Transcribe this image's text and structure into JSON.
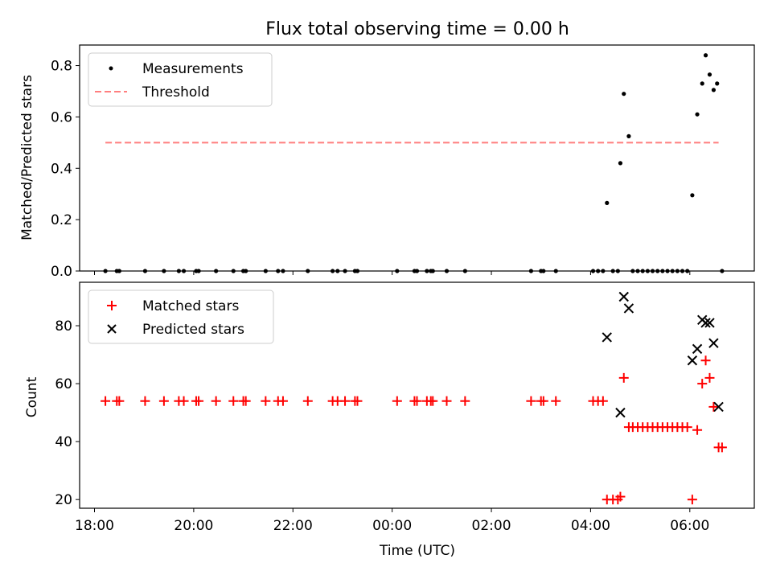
{
  "figure_title": "Flux total observing time = 0.00 h",
  "chart_data": [
    {
      "type": "scatter",
      "title": "Flux total observing time = 0.00 h",
      "xlabel": "",
      "ylabel": "Matched/Predicted stars",
      "x_unit": "hours since 00:00 UTC (negative = previous evening)",
      "xlim": [
        -6.3,
        7.3
      ],
      "ylim": [
        0,
        0.88
      ],
      "yticks": [
        "0.0",
        "0.2",
        "0.4",
        "0.6",
        "0.8"
      ],
      "legend_position": "top-left",
      "grid": false,
      "series": [
        {
          "name": "Measurements",
          "marker": "dot",
          "color": "#000000",
          "points": [
            [
              -5.78,
              0
            ],
            [
              -5.55,
              0
            ],
            [
              -5.5,
              0
            ],
            [
              -4.98,
              0
            ],
            [
              -4.6,
              0
            ],
            [
              -4.3,
              0
            ],
            [
              -4.2,
              0
            ],
            [
              -3.95,
              0
            ],
            [
              -3.9,
              0
            ],
            [
              -3.55,
              0
            ],
            [
              -3.2,
              0
            ],
            [
              -3.0,
              0
            ],
            [
              -2.95,
              0
            ],
            [
              -2.55,
              0
            ],
            [
              -2.3,
              0
            ],
            [
              -2.2,
              0
            ],
            [
              -1.7,
              0
            ],
            [
              -1.2,
              0
            ],
            [
              -1.1,
              0
            ],
            [
              -0.95,
              0
            ],
            [
              -0.75,
              0
            ],
            [
              -0.7,
              0
            ],
            [
              0.1,
              0
            ],
            [
              0.45,
              0
            ],
            [
              0.5,
              0
            ],
            [
              0.7,
              0
            ],
            [
              0.78,
              0
            ],
            [
              0.82,
              0
            ],
            [
              1.1,
              0
            ],
            [
              1.47,
              0
            ],
            [
              2.8,
              0
            ],
            [
              3.0,
              0
            ],
            [
              3.05,
              0
            ],
            [
              3.3,
              0
            ],
            [
              4.05,
              0
            ],
            [
              4.15,
              0
            ],
            [
              4.25,
              0
            ],
            [
              4.33,
              0.265
            ],
            [
              4.45,
              0
            ],
            [
              4.55,
              0
            ],
            [
              4.6,
              0.42
            ],
            [
              4.67,
              0.69
            ],
            [
              4.77,
              0.525
            ],
            [
              4.85,
              0
            ],
            [
              4.95,
              0
            ],
            [
              5.05,
              0
            ],
            [
              5.15,
              0
            ],
            [
              5.25,
              0
            ],
            [
              5.35,
              0
            ],
            [
              5.45,
              0
            ],
            [
              5.55,
              0
            ],
            [
              5.65,
              0
            ],
            [
              5.75,
              0
            ],
            [
              5.85,
              0
            ],
            [
              5.95,
              0
            ],
            [
              6.05,
              0.295
            ],
            [
              6.15,
              0.61
            ],
            [
              6.25,
              0.73
            ],
            [
              6.32,
              0.84
            ],
            [
              6.4,
              0.765
            ],
            [
              6.48,
              0.705
            ],
            [
              6.55,
              0.73
            ],
            [
              6.65,
              0
            ]
          ]
        },
        {
          "name": "Threshold",
          "style": "dashed",
          "color": "#ff7f7f",
          "x": [
            -5.78,
            6.58
          ],
          "y": [
            0.5,
            0.5
          ]
        }
      ]
    },
    {
      "type": "scatter",
      "xlabel": "Time (UTC)",
      "ylabel": "Count",
      "xlim": [
        -6.3,
        7.3
      ],
      "ylim": [
        17,
        95
      ],
      "yticks": [
        "20",
        "40",
        "60",
        "80"
      ],
      "xticks": [
        {
          "v": -6,
          "label": "18:00"
        },
        {
          "v": -4,
          "label": "20:00"
        },
        {
          "v": -2,
          "label": "22:00"
        },
        {
          "v": 0,
          "label": "00:00"
        },
        {
          "v": 2,
          "label": "02:00"
        },
        {
          "v": 4,
          "label": "04:00"
        },
        {
          "v": 6,
          "label": "06:00"
        }
      ],
      "minor_xticks": [
        -4,
        -2,
        0,
        2,
        4,
        6
      ],
      "legend_position": "top-left",
      "grid": false,
      "series": [
        {
          "name": "Matched stars",
          "marker": "plus",
          "color": "#ff0000",
          "points": [
            [
              -5.78,
              54
            ],
            [
              -5.55,
              54
            ],
            [
              -5.5,
              54
            ],
            [
              -4.98,
              54
            ],
            [
              -4.6,
              54
            ],
            [
              -4.3,
              54
            ],
            [
              -4.2,
              54
            ],
            [
              -3.95,
              54
            ],
            [
              -3.9,
              54
            ],
            [
              -3.55,
              54
            ],
            [
              -3.2,
              54
            ],
            [
              -3.0,
              54
            ],
            [
              -2.95,
              54
            ],
            [
              -2.55,
              54
            ],
            [
              -2.3,
              54
            ],
            [
              -2.2,
              54
            ],
            [
              -1.7,
              54
            ],
            [
              -1.2,
              54
            ],
            [
              -1.1,
              54
            ],
            [
              -0.95,
              54
            ],
            [
              -0.75,
              54
            ],
            [
              -0.7,
              54
            ],
            [
              0.1,
              54
            ],
            [
              0.45,
              54
            ],
            [
              0.5,
              54
            ],
            [
              0.7,
              54
            ],
            [
              0.78,
              54
            ],
            [
              0.82,
              54
            ],
            [
              1.1,
              54
            ],
            [
              1.47,
              54
            ],
            [
              2.8,
              54
            ],
            [
              3.0,
              54
            ],
            [
              3.05,
              54
            ],
            [
              3.3,
              54
            ],
            [
              4.05,
              54
            ],
            [
              4.15,
              54
            ],
            [
              4.25,
              54
            ],
            [
              4.33,
              20
            ],
            [
              4.45,
              20
            ],
            [
              4.55,
              20
            ],
            [
              4.6,
              21
            ],
            [
              4.67,
              62
            ],
            [
              4.77,
              45
            ],
            [
              4.85,
              45
            ],
            [
              4.95,
              45
            ],
            [
              5.05,
              45
            ],
            [
              5.15,
              45
            ],
            [
              5.25,
              45
            ],
            [
              5.35,
              45
            ],
            [
              5.45,
              45
            ],
            [
              5.55,
              45
            ],
            [
              5.65,
              45
            ],
            [
              5.75,
              45
            ],
            [
              5.85,
              45
            ],
            [
              5.95,
              45
            ],
            [
              6.05,
              20
            ],
            [
              6.15,
              44
            ],
            [
              6.25,
              60
            ],
            [
              6.32,
              68
            ],
            [
              6.4,
              62
            ],
            [
              6.48,
              52
            ],
            [
              6.58,
              38
            ],
            [
              6.65,
              38
            ]
          ]
        },
        {
          "name": "Predicted stars",
          "marker": "x",
          "color": "#000000",
          "points": [
            [
              4.33,
              76
            ],
            [
              4.6,
              50
            ],
            [
              4.67,
              90
            ],
            [
              4.77,
              86
            ],
            [
              6.05,
              68
            ],
            [
              6.15,
              72
            ],
            [
              6.25,
              82
            ],
            [
              6.32,
              81
            ],
            [
              6.4,
              81
            ],
            [
              6.48,
              74
            ],
            [
              6.58,
              52
            ]
          ]
        }
      ]
    }
  ]
}
